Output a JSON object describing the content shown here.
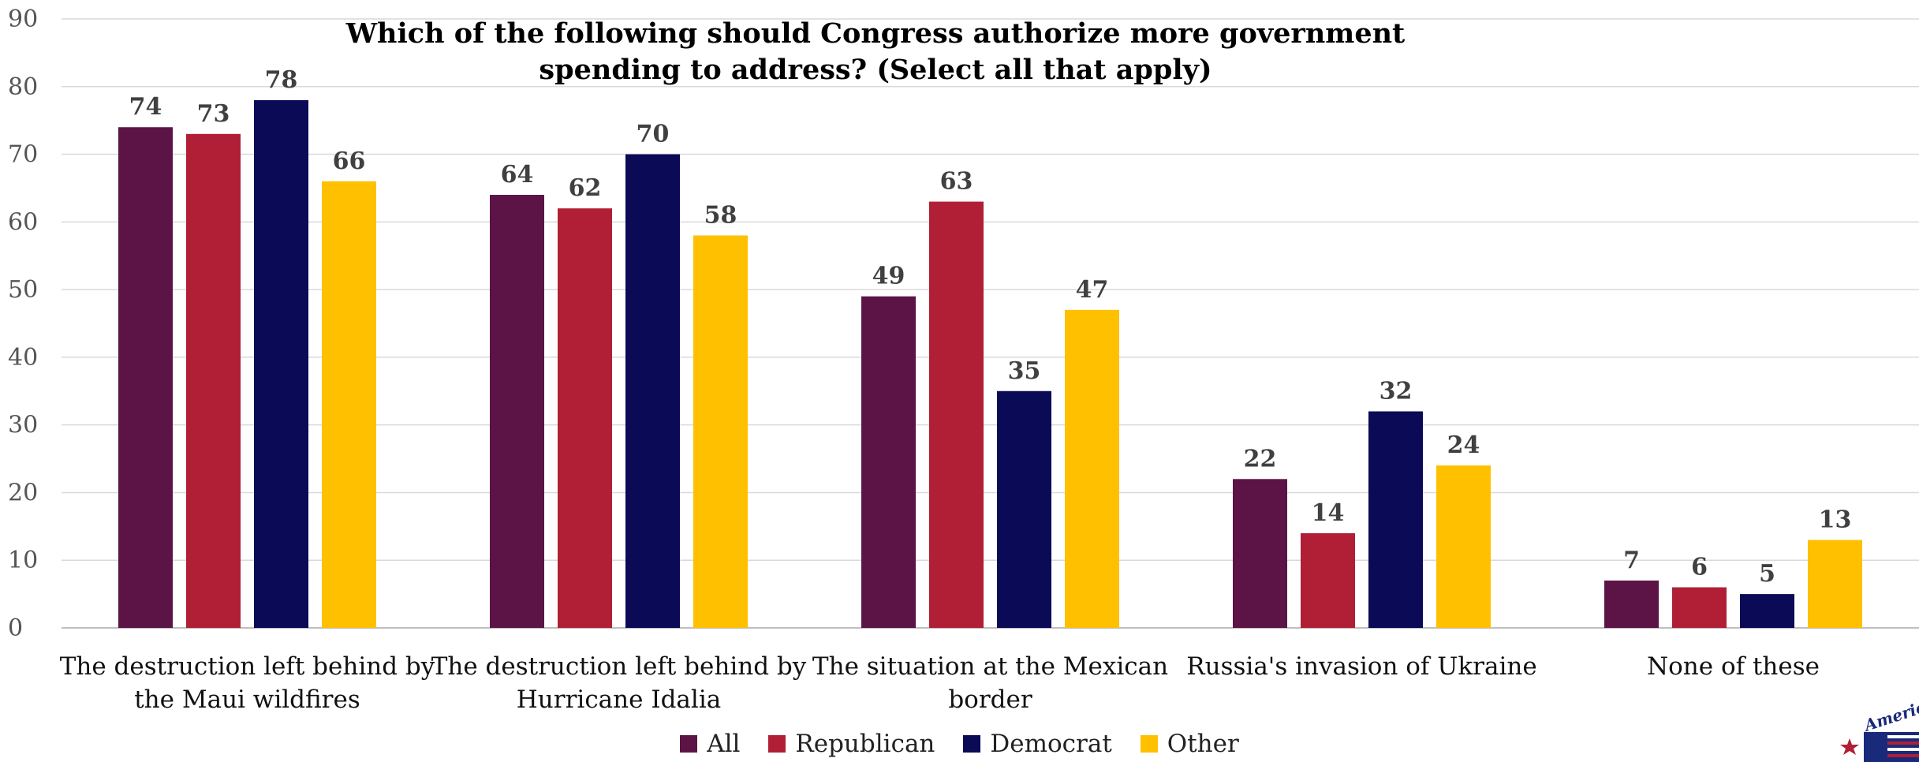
{
  "chart_data": {
    "type": "bar",
    "title": "Which of the following should Congress authorize more government spending to address? (Select all that apply)",
    "categories": [
      [
        "The destruction left behind by",
        "the Maui wildfires"
      ],
      [
        "The destruction left behind by",
        "Hurricane Idalia"
      ],
      [
        "The situation at the Mexican",
        "border"
      ],
      [
        "Russia's invasion of Ukraine"
      ],
      [
        "None of these"
      ]
    ],
    "series": [
      {
        "name": "All",
        "color": "#5C1446",
        "values": [
          74,
          64,
          49,
          22,
          7
        ]
      },
      {
        "name": "Republican",
        "color": "#B01F35",
        "values": [
          73,
          62,
          63,
          14,
          6
        ]
      },
      {
        "name": "Democrat",
        "color": "#0A0A56",
        "values": [
          78,
          70,
          35,
          32,
          5
        ]
      },
      {
        "name": "Other",
        "color": "#FFC000",
        "values": [
          66,
          58,
          47,
          24,
          13
        ]
      }
    ],
    "ylim": [
      0,
      90
    ],
    "yticks": [
      0,
      10,
      20,
      30,
      40,
      50,
      60,
      70,
      80,
      90
    ],
    "grid": true,
    "legend_position": "bottom"
  },
  "logo": {
    "text": "America"
  }
}
